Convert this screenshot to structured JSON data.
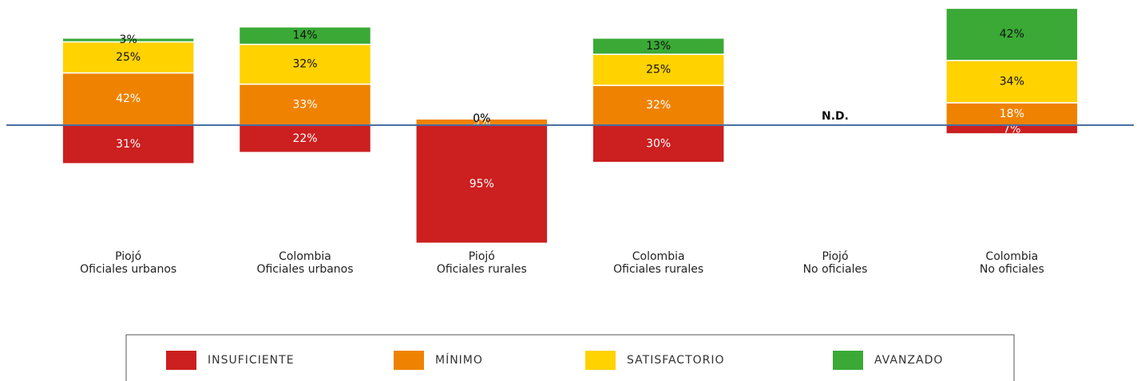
{
  "chart_data": {
    "type": "diverging_stacked_bar",
    "categories": [
      [
        "Piojó",
        "Oficiales urbanos"
      ],
      [
        "Colombia",
        "Oficiales urbanos"
      ],
      [
        "Piojó",
        "Oficiales rurales"
      ],
      [
        "Colombia",
        "Oficiales rurales"
      ],
      [
        "Piojó",
        "No oficiales"
      ],
      [
        "Colombia",
        "No oficiales"
      ]
    ],
    "series": [
      {
        "name": "INSUFICIENTE",
        "color": "#cc1f1f",
        "below": true,
        "values": [
          31,
          22,
          95,
          30,
          null,
          7
        ],
        "value_labels": [
          "31%",
          "22%",
          "95%",
          "30%",
          null,
          "7%"
        ]
      },
      {
        "name": "MÍNIMO",
        "color": "#ef8200",
        "values": [
          42,
          33,
          5,
          32,
          null,
          18
        ],
        "value_labels": [
          "42%",
          "33%",
          "5%",
          "32%",
          null,
          "18%"
        ]
      },
      {
        "name": "SATISFACTORIO",
        "color": "#ffd200",
        "values": [
          25,
          32,
          0,
          25,
          null,
          34
        ],
        "value_labels": [
          "25%",
          "32%",
          "0%",
          "25%",
          null,
          "34%"
        ]
      },
      {
        "name": "AVANZADO",
        "color": "#3aa935",
        "values": [
          3,
          14,
          0,
          13,
          null,
          42
        ],
        "value_labels": [
          "3%",
          "14%",
          "0%",
          "13%",
          null,
          "42%"
        ]
      }
    ],
    "annotations": [
      {
        "category": 4,
        "text": "N.D."
      }
    ],
    "ylim": [
      -100,
      100
    ],
    "baseline_color": "#4a6fa5"
  }
}
